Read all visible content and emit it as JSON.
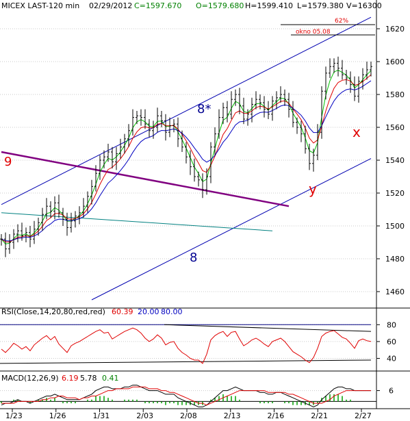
{
  "colors": {
    "price_bar": "#000000",
    "ma_fast": "#00c000",
    "ma_mid": "#e00000",
    "ma_slow": "#0000c0",
    "channel": "#0000b0",
    "purple_line": "#800080",
    "teal_line": "#008080",
    "annotation": "#e00000",
    "rsi_line": "#e00000",
    "rsi_level_line": "#000080",
    "macd_hist": "#00a000",
    "macd_line": "#000000",
    "macd_signal": "#e00000",
    "header_blue": "#0000c0",
    "header_green": "#008000",
    "header_red": "#e00000",
    "grid": "#c8c8c8"
  },
  "header": {
    "symbol": "MICEX LAST-120 min",
    "date": "02/29/2012",
    "close": "C=1597.670",
    "open": "O=1579.680",
    "high": "H=1599.410",
    "low": "L=1579.380",
    "volume": "V=16300"
  },
  "rsi_header": {
    "label": "RSI(Close,14,20,80,red,red)",
    "value": "60.39",
    "low_level": "20.00",
    "high_level": "80.00"
  },
  "macd_header": {
    "label": "MACD(12,26,9)",
    "macd": "6.19",
    "signal": "5.78",
    "hist": "0.41"
  },
  "annotations": {
    "wave_9": "9",
    "wave_8_star": "8*",
    "wave_8": "8",
    "x_label": "x",
    "y_label": "y",
    "pct_label": "62%",
    "okno_label": "okno 05.08"
  },
  "chart_data": [
    {
      "type": "line",
      "panel": "price",
      "title": "MICEX LAST-120 min",
      "x_labels": [
        "1/23",
        "1/26",
        "1/31",
        "2/03",
        "2/08",
        "2/13",
        "2/16",
        "2/21",
        "2/27"
      ],
      "ylim": [
        1450,
        1630
      ],
      "yticks": [
        1460,
        1480,
        1500,
        1520,
        1540,
        1560,
        1580,
        1600,
        1620
      ],
      "grid": true,
      "series": [
        {
          "values": [
            1492,
            1486,
            1490,
            1495,
            1497,
            1494,
            1496,
            1492,
            1498,
            1502,
            1507,
            1512,
            1509,
            1514,
            1508,
            1504,
            1499,
            1503,
            1506,
            1508,
            1512,
            1518,
            1524,
            1532,
            1540,
            1542,
            1545,
            1539,
            1544,
            1548,
            1553,
            1558,
            1566,
            1567,
            1566,
            1562,
            1558,
            1560,
            1567,
            1564,
            1557,
            1561,
            1562,
            1553,
            1548,
            1542,
            1536,
            1530,
            1528,
            1522,
            1530,
            1548,
            1556,
            1566,
            1572,
            1568,
            1577,
            1580,
            1573,
            1565,
            1568,
            1574,
            1577,
            1575,
            1571,
            1568,
            1576,
            1578,
            1580,
            1577,
            1571,
            1563,
            1560,
            1556,
            1547,
            1538,
            1543,
            1557,
            1582,
            1593,
            1597,
            1599,
            1596,
            1592,
            1590,
            1586,
            1579,
            1588,
            1592,
            1595,
            1597
          ]
        }
      ]
    },
    {
      "type": "line",
      "panel": "rsi",
      "title": "RSI(Close,14,20,80,red,red)",
      "ylim": [
        25,
        90
      ],
      "yticks": [
        40,
        60,
        80
      ],
      "series": [
        {
          "values": [
            51,
            47,
            52,
            58,
            55,
            51,
            54,
            49,
            56,
            60,
            64,
            67,
            62,
            66,
            57,
            52,
            47,
            55,
            58,
            60,
            63,
            66,
            69,
            72,
            74,
            70,
            71,
            63,
            66,
            69,
            72,
            74,
            76,
            74,
            70,
            64,
            60,
            63,
            68,
            64,
            56,
            59,
            60,
            52,
            47,
            44,
            40,
            38,
            38,
            34,
            45,
            62,
            67,
            70,
            72,
            66,
            71,
            72,
            63,
            55,
            58,
            62,
            64,
            61,
            57,
            54,
            60,
            62,
            64,
            60,
            54,
            48,
            45,
            42,
            38,
            35,
            41,
            52,
            66,
            70,
            72,
            73,
            69,
            65,
            63,
            58,
            52,
            61,
            63,
            61,
            60
          ]
        }
      ]
    },
    {
      "type": "line",
      "panel": "macd",
      "title": "MACD(12,26,9)",
      "ylim": [
        -4,
        10
      ],
      "yticks": [
        6
      ],
      "series": [
        {
          "values": [
            -2,
            -1,
            -1,
            0,
            1,
            0,
            0,
            -1,
            0,
            1,
            2,
            3,
            3,
            4,
            3,
            2,
            1,
            1,
            1,
            1,
            2,
            3,
            4,
            6,
            7,
            8,
            8,
            7,
            7,
            7,
            8,
            8,
            9,
            9,
            8,
            7,
            6,
            6,
            6,
            5,
            4,
            4,
            4,
            2,
            1,
            0,
            -1,
            -2,
            -3,
            -3,
            -2,
            0,
            2,
            4,
            6,
            6,
            7,
            8,
            7,
            6,
            6,
            6,
            6,
            5,
            5,
            4,
            4,
            5,
            5,
            4,
            3,
            2,
            1,
            0,
            -1,
            -2,
            -3,
            -2,
            1,
            3,
            5,
            7,
            8,
            8,
            7,
            7,
            6,
            6,
            6,
            6,
            6
          ]
        },
        {
          "values": [
            -1,
            -1,
            -1,
            -1,
            0,
            0,
            0,
            0,
            0,
            0,
            1,
            1,
            2,
            2,
            3,
            3,
            2,
            2,
            2,
            1,
            2,
            2,
            3,
            3,
            4,
            5,
            6,
            6,
            7,
            7,
            7,
            7,
            8,
            8,
            8,
            8,
            7,
            7,
            7,
            6,
            6,
            5,
            5,
            4,
            3,
            2,
            1,
            0,
            -1,
            -1,
            -2,
            -1,
            0,
            1,
            2,
            3,
            4,
            5,
            6,
            6,
            6,
            6,
            6,
            6,
            6,
            5,
            5,
            5,
            5,
            5,
            4,
            4,
            3,
            2,
            1,
            0,
            -1,
            -1,
            -1,
            0,
            1,
            3,
            4,
            5,
            6,
            6,
            6,
            6,
            6,
            6,
            6
          ]
        }
      ]
    }
  ]
}
